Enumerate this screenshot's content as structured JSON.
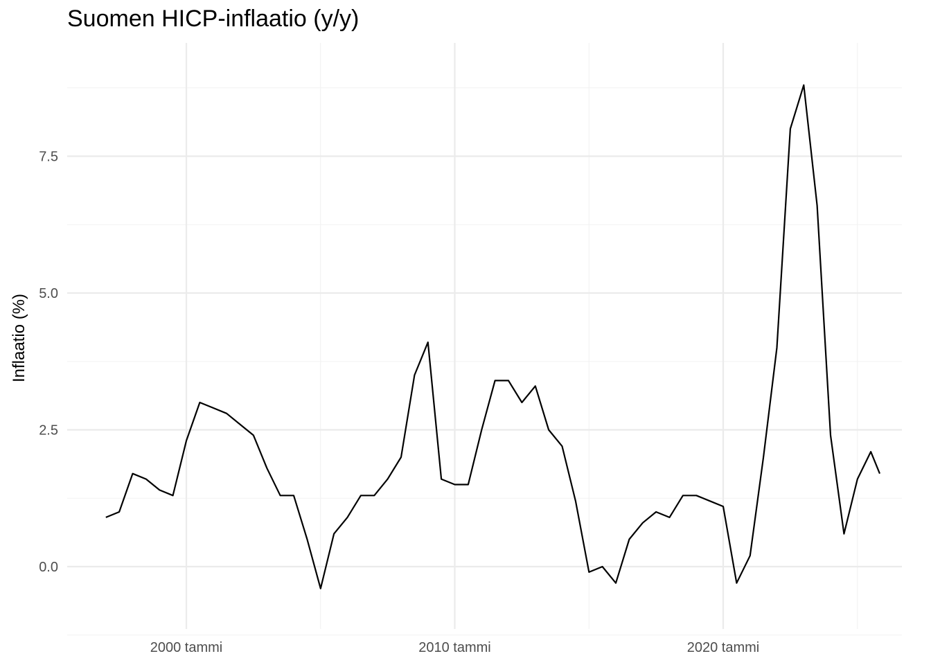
{
  "chart_data": {
    "type": "line",
    "title": "Suomen HICP-inflaatio (y/y)",
    "xlabel": "",
    "ylabel": "Inflaatio (%)",
    "x_ticks": [
      "2000 tammi",
      "2010 tammi",
      "2020 tammi"
    ],
    "y_ticks": [
      0.0,
      2.5,
      5.0,
      7.5
    ],
    "y_tick_labels": [
      "0.0",
      "2.5",
      "5.0",
      "7.5"
    ],
    "xlim": [
      "1995-01",
      "2026-12"
    ],
    "ylim": [
      -1.1,
      9.6
    ],
    "grid": true,
    "series": [
      {
        "x": [
          "1997-01",
          "1997-07",
          "1998-01",
          "1998-07",
          "1999-01",
          "1999-07",
          "2000-01",
          "2000-07",
          "2001-01",
          "2001-07",
          "2002-01",
          "2002-07",
          "2003-01",
          "2003-07",
          "2004-01",
          "2004-07",
          "2005-01",
          "2005-07",
          "2006-01",
          "2006-07",
          "2007-01",
          "2007-07",
          "2008-01",
          "2008-07",
          "2009-01",
          "2009-07",
          "2010-01",
          "2010-07",
          "2011-01",
          "2011-07",
          "2012-01",
          "2012-07",
          "2013-01",
          "2013-07",
          "2014-01",
          "2014-07",
          "2015-01",
          "2015-07",
          "2016-01",
          "2016-07",
          "2017-01",
          "2017-07",
          "2018-01",
          "2018-07",
          "2019-01",
          "2019-07",
          "2020-01",
          "2020-07",
          "2021-01",
          "2021-07",
          "2022-01",
          "2022-07",
          "2023-01",
          "2023-07",
          "2024-01",
          "2024-07",
          "2025-01",
          "2025-07",
          "2025-11"
        ],
        "values": [
          0.9,
          1.0,
          1.7,
          1.6,
          1.4,
          1.3,
          2.3,
          3.0,
          2.9,
          2.8,
          2.6,
          2.4,
          1.8,
          1.3,
          1.3,
          0.5,
          -0.4,
          0.6,
          0.9,
          1.3,
          1.3,
          1.6,
          2.0,
          3.5,
          4.1,
          1.6,
          1.5,
          1.5,
          2.5,
          3.4,
          3.4,
          3.0,
          3.3,
          2.5,
          2.2,
          1.2,
          -0.1,
          0.0,
          -0.3,
          0.5,
          0.8,
          1.0,
          0.9,
          1.3,
          1.3,
          1.2,
          1.1,
          -0.3,
          0.2,
          2.0,
          4.0,
          8.0,
          8.8,
          6.6,
          2.4,
          0.6,
          1.6,
          2.1,
          1.7
        ]
      }
    ]
  }
}
